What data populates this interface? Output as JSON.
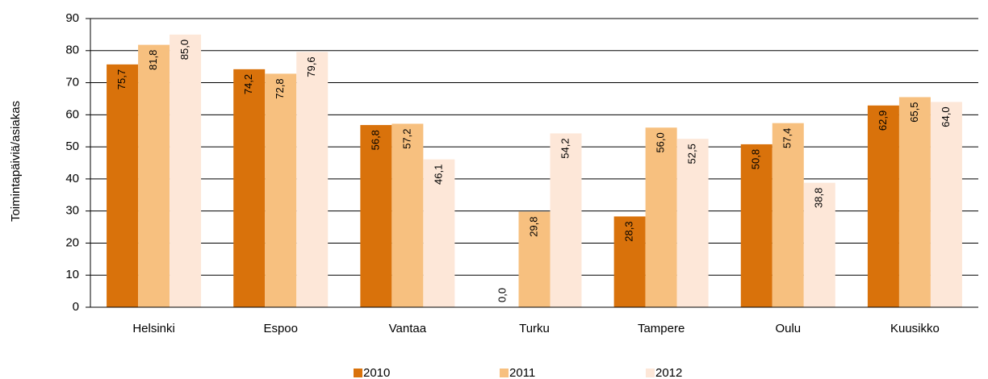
{
  "chart_data": {
    "type": "bar",
    "ylabel": "Toimintapäiviä/asiakas",
    "categories": [
      "Helsinki",
      "Espoo",
      "Vantaa",
      "Turku",
      "Tampere",
      "Oulu",
      "Kuusikko"
    ],
    "series": [
      {
        "name": "2010",
        "color": "#d9720b",
        "values": [
          75.7,
          74.2,
          56.8,
          0.0,
          28.3,
          50.8,
          62.9
        ],
        "value_labels": [
          "75,7",
          "74,2",
          "56,8",
          "0,0",
          "28,3",
          "50,8",
          "62,9"
        ]
      },
      {
        "name": "2011",
        "color": "#f7c07f",
        "values": [
          81.8,
          72.8,
          57.2,
          29.8,
          56.0,
          57.4,
          65.5
        ],
        "value_labels": [
          "81,8",
          "72,8",
          "57,2",
          "29,8",
          "56,0",
          "57,4",
          "65,5"
        ]
      },
      {
        "name": "2012",
        "color": "#fde7d8",
        "values": [
          85.0,
          79.6,
          46.1,
          54.2,
          52.5,
          38.8,
          64.0
        ],
        "value_labels": [
          "85,0",
          "79,6",
          "46,1",
          "54,2",
          "52,5",
          "38,8",
          "64,0"
        ]
      }
    ],
    "ylim": [
      0,
      90
    ],
    "yticks": [
      0,
      10,
      20,
      30,
      40,
      50,
      60,
      70,
      80,
      90
    ],
    "grid": true,
    "legend": "bottom"
  }
}
